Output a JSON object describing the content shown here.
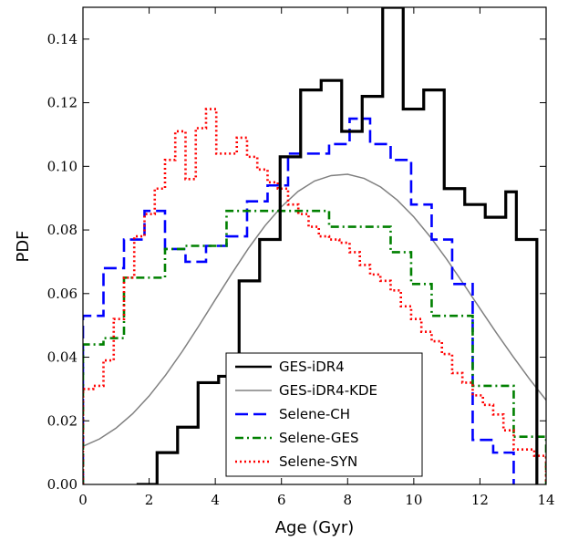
{
  "chart_data": {
    "type": "line",
    "xlabel": "Age (Gyr)",
    "ylabel": "PDF",
    "xlim": [
      0,
      14
    ],
    "ylim": [
      0,
      0.15
    ],
    "xticks": [
      0,
      2,
      4,
      6,
      8,
      10,
      12,
      14
    ],
    "xtick_labels": [
      "0",
      "2",
      "4",
      "6",
      "8",
      "10",
      "12",
      "14"
    ],
    "yticks": [
      0,
      0.02,
      0.04,
      0.06,
      0.08,
      0.1,
      0.12,
      0.14
    ],
    "ytick_labels": [
      "0.00",
      "0.02",
      "0.04",
      "0.06",
      "0.08",
      "0.10",
      "0.12",
      "0.14"
    ],
    "grid": false,
    "legend_position": "bottom-center",
    "series": [
      {
        "name": "GES-iDR4",
        "style": "step",
        "color": "#000000",
        "dash": "solid",
        "x": [
          1.62,
          2.24,
          2.86,
          3.48,
          4.1,
          4.72,
          5.34,
          5.96,
          6.58,
          7.2,
          7.82,
          8.44,
          9.06,
          9.68,
          10.3,
          10.92,
          11.54,
          12.16,
          12.78,
          13.1
        ],
        "y": [
          0,
          0.01,
          0.018,
          0.032,
          0.034,
          0.064,
          0.077,
          0.103,
          0.124,
          0.127,
          0.111,
          0.122,
          0.15,
          0.118,
          0.124,
          0.093,
          0.088,
          0.084,
          0.092,
          0.077
        ]
      },
      {
        "name": "GES-iDR4-KDE",
        "style": "curve",
        "color": "#808080",
        "dash": "solid",
        "x": [
          0,
          0.5,
          1,
          1.5,
          2,
          2.5,
          3,
          3.5,
          4,
          4.5,
          5,
          5.5,
          6,
          6.5,
          7,
          7.5,
          8,
          8.5,
          9,
          9.5,
          10,
          10.5,
          11,
          11.5,
          12,
          12.5,
          13,
          13.5,
          14
        ],
        "y": [
          0.012,
          0.0143,
          0.0177,
          0.0222,
          0.0278,
          0.0344,
          0.0418,
          0.0498,
          0.0581,
          0.0663,
          0.0742,
          0.0813,
          0.0873,
          0.0921,
          0.0954,
          0.0971,
          0.0975,
          0.0962,
          0.0935,
          0.0894,
          0.0841,
          0.0778,
          0.0707,
          0.0631,
          0.0553,
          0.0476,
          0.0402,
          0.0331,
          0.0265
        ]
      },
      {
        "name": "Selene-CH",
        "style": "step",
        "color": "#0000ff",
        "dash": "dashed",
        "x": [
          0,
          0.62,
          1.24,
          1.86,
          2.48,
          3.1,
          3.72,
          4.34,
          4.96,
          5.58,
          6.2,
          6.82,
          7.44,
          8.06,
          8.68,
          9.3,
          9.92,
          10.54,
          11.16,
          11.78,
          12.4
        ],
        "y": [
          0.053,
          0.068,
          0.077,
          0.086,
          0.074,
          0.07,
          0.075,
          0.078,
          0.089,
          0.094,
          0.104,
          0.104,
          0.107,
          0.115,
          0.107,
          0.102,
          0.088,
          0.077,
          0.063,
          0.014,
          0.01
        ]
      },
      {
        "name": "Selene-GES",
        "style": "step",
        "color": "#008000",
        "dash": "dashdot",
        "x": [
          0,
          0.62,
          1.24,
          1.86,
          2.48,
          3.1,
          3.72,
          4.34,
          4.96,
          5.58,
          6.2,
          6.82,
          7.44,
          8.06,
          8.68,
          9.3,
          9.92,
          10.54,
          11.16,
          11.78,
          12.4,
          13.02,
          13.64
        ],
        "y": [
          0.044,
          0.046,
          0.065,
          0.065,
          0.074,
          0.075,
          0.075,
          0.086,
          0.086,
          0.086,
          0.086,
          0.086,
          0.081,
          0.081,
          0.081,
          0.073,
          0.063,
          0.053,
          0.053,
          0.031,
          0.031,
          0.015,
          0.015
        ]
      },
      {
        "name": "Selene-SYN",
        "style": "step",
        "color": "#ff0000",
        "dash": "dotted",
        "x": [
          0,
          0.31,
          0.62,
          0.93,
          1.24,
          1.55,
          1.86,
          2.17,
          2.48,
          2.79,
          3.1,
          3.41,
          3.72,
          4.03,
          4.34,
          4.65,
          4.96,
          5.27,
          5.58,
          5.89,
          6.2,
          6.51,
          6.82,
          7.13,
          7.44,
          7.75,
          8.06,
          8.37,
          8.68,
          8.99,
          9.3,
          9.61,
          9.92,
          10.23,
          10.54,
          10.85,
          11.16,
          11.47,
          11.78,
          12.09,
          12.4,
          12.71,
          13.02,
          13.33,
          13.64
        ],
        "y": [
          0.03,
          0.031,
          0.039,
          0.052,
          0.065,
          0.078,
          0.085,
          0.093,
          0.102,
          0.111,
          0.096,
          0.112,
          0.118,
          0.104,
          0.104,
          0.109,
          0.103,
          0.099,
          0.095,
          0.093,
          0.088,
          0.085,
          0.081,
          0.078,
          0.077,
          0.076,
          0.073,
          0.069,
          0.066,
          0.064,
          0.061,
          0.056,
          0.052,
          0.048,
          0.045,
          0.041,
          0.035,
          0.032,
          0.028,
          0.025,
          0.022,
          0.017,
          0.011,
          0.011,
          0.009
        ]
      }
    ]
  }
}
